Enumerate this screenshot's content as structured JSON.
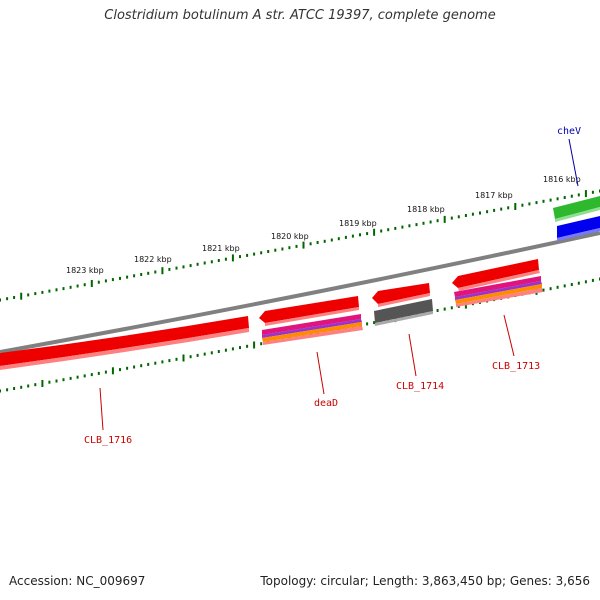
{
  "title": "Clostridium botulinum A str. ATCC 19397, complete genome",
  "footer": {
    "accession": "Accession: NC_009697",
    "summary": "Topology: circular; Length: 3,863,450 bp; Genes: 3,656"
  },
  "colors": {
    "backbone": "#808080",
    "tick": "#006600",
    "gene_red": "#ee0000",
    "gene_green": "#2db82d",
    "gene_blue": "#0000ee",
    "gene_gray": "#555555",
    "label_red": "#cc0000",
    "label_blue": "#0000aa"
  },
  "scale_labels": [
    "1823 kbp",
    "1822 kbp",
    "1821 kbp",
    "1820 kbp",
    "1819 kbp",
    "1818 kbp",
    "1817 kbp",
    "1816 kbp"
  ],
  "gene_labels": [
    {
      "id": "CLB_1716",
      "text": "CLB_1716",
      "color": "red"
    },
    {
      "id": "deaD",
      "text": "deaD",
      "color": "red"
    },
    {
      "id": "CLB_1714",
      "text": "CLB_1714",
      "color": "red"
    },
    {
      "id": "CLB_1713",
      "text": "CLB_1713",
      "color": "red"
    },
    {
      "id": "cheV",
      "text": "cheV",
      "color": "blue"
    }
  ]
}
